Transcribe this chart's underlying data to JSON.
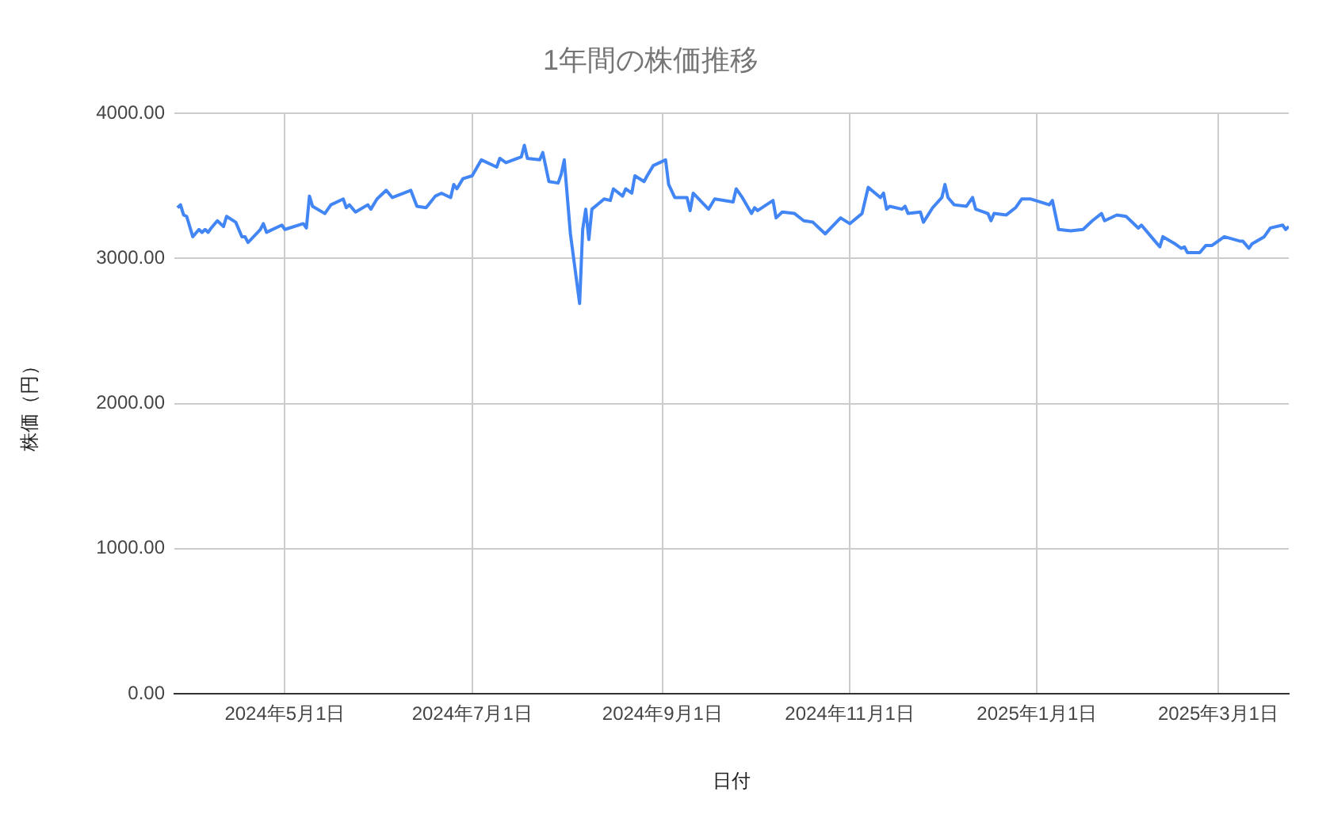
{
  "chart_data": {
    "type": "line",
    "title": "1年間の株価推移",
    "xlabel": "日付",
    "ylabel": "株価（円）",
    "xlim": [
      "2024-03-26",
      "2025-03-24"
    ],
    "xticks": [
      {
        "value": "2024-05-01",
        "label": "2024年5月1日"
      },
      {
        "value": "2024-07-01",
        "label": "2024年7月1日"
      },
      {
        "value": "2024-09-01",
        "label": "2024年9月1日"
      },
      {
        "value": "2024-11-01",
        "label": "2024年11月1日"
      },
      {
        "value": "2025-01-01",
        "label": "2025年1月1日"
      },
      {
        "value": "2025-03-01",
        "label": "2025年3月1日"
      }
    ],
    "ylim": [
      0,
      4000
    ],
    "yticks": [
      {
        "value": 0,
        "label": "0.00"
      },
      {
        "value": 1000,
        "label": "1000.00"
      },
      {
        "value": 2000,
        "label": "2000.00"
      },
      {
        "value": 3000,
        "label": "3000.00"
      },
      {
        "value": 4000,
        "label": "4000.00"
      }
    ],
    "grid": true,
    "legend": false,
    "marker": "none",
    "line_style": "solid",
    "x": [
      "2024-03-27",
      "2024-03-28",
      "2024-03-29",
      "2024-03-30",
      "2024-04-01",
      "2024-04-03",
      "2024-04-04",
      "2024-04-05",
      "2024-04-06",
      "2024-04-07",
      "2024-04-09",
      "2024-04-11",
      "2024-04-12",
      "2024-04-15",
      "2024-04-17",
      "2024-04-18",
      "2024-04-19",
      "2024-04-23",
      "2024-04-24",
      "2024-04-25",
      "2024-04-30",
      "2024-05-01",
      "2024-05-07",
      "2024-05-08",
      "2024-05-09",
      "2024-05-10",
      "2024-05-14",
      "2024-05-16",
      "2024-05-20",
      "2024-05-21",
      "2024-05-22",
      "2024-05-24",
      "2024-05-28",
      "2024-05-29",
      "2024-05-31",
      "2024-06-03",
      "2024-06-05",
      "2024-06-11",
      "2024-06-13",
      "2024-06-16",
      "2024-06-19",
      "2024-06-21",
      "2024-06-24",
      "2024-06-25",
      "2024-06-26",
      "2024-06-28",
      "2024-07-01",
      "2024-07-04",
      "2024-07-09",
      "2024-07-10",
      "2024-07-12",
      "2024-07-17",
      "2024-07-18",
      "2024-07-19",
      "2024-07-23",
      "2024-07-24",
      "2024-07-26",
      "2024-07-29",
      "2024-07-30",
      "2024-07-31",
      "2024-08-02",
      "2024-08-05",
      "2024-08-06",
      "2024-08-07",
      "2024-08-08",
      "2024-08-09",
      "2024-08-13",
      "2024-08-15",
      "2024-08-16",
      "2024-08-19",
      "2024-08-20",
      "2024-08-22",
      "2024-08-23",
      "2024-08-26",
      "2024-08-27",
      "2024-08-29",
      "2024-09-02",
      "2024-09-03",
      "2024-09-05",
      "2024-09-09",
      "2024-09-10",
      "2024-09-11",
      "2024-09-16",
      "2024-09-18",
      "2024-09-24",
      "2024-09-25",
      "2024-09-27",
      "2024-09-30",
      "2024-10-01",
      "2024-10-02",
      "2024-10-07",
      "2024-10-08",
      "2024-10-10",
      "2024-10-14",
      "2024-10-17",
      "2024-10-20",
      "2024-10-22",
      "2024-10-24",
      "2024-10-29",
      "2024-11-01",
      "2024-11-05",
      "2024-11-07",
      "2024-11-11",
      "2024-11-12",
      "2024-11-13",
      "2024-11-14",
      "2024-11-18",
      "2024-11-19",
      "2024-11-20",
      "2024-11-24",
      "2024-11-25",
      "2024-11-28",
      "2024-12-01",
      "2024-12-02",
      "2024-12-03",
      "2024-12-05",
      "2024-12-09",
      "2024-12-11",
      "2024-12-12",
      "2024-12-16",
      "2024-12-17",
      "2024-12-18",
      "2024-12-22",
      "2024-12-25",
      "2024-12-27",
      "2024-12-30",
      "2025-01-05",
      "2025-01-06",
      "2025-01-08",
      "2025-01-12",
      "2025-01-16",
      "2025-01-19",
      "2025-01-22",
      "2025-01-23",
      "2025-01-27",
      "2025-01-30",
      "2025-02-03",
      "2025-02-04",
      "2025-02-08",
      "2025-02-10",
      "2025-02-11",
      "2025-02-15",
      "2025-02-17",
      "2025-02-18",
      "2025-02-19",
      "2025-02-23",
      "2025-02-25",
      "2025-02-27",
      "2025-03-03",
      "2025-03-08",
      "2025-03-09",
      "2025-03-11",
      "2025-03-12",
      "2025-03-16",
      "2025-03-18",
      "2025-03-22",
      "2025-03-23",
      "2025-03-24"
    ],
    "series": [
      {
        "color": "#4285f4",
        "values": [
          3350,
          3370,
          3300,
          3290,
          3150,
          3200,
          3180,
          3200,
          3180,
          3210,
          3260,
          3220,
          3290,
          3250,
          3150,
          3150,
          3110,
          3200,
          3240,
          3180,
          3230,
          3200,
          3240,
          3210,
          3430,
          3360,
          3310,
          3370,
          3410,
          3350,
          3370,
          3320,
          3370,
          3340,
          3410,
          3470,
          3420,
          3470,
          3360,
          3350,
          3430,
          3450,
          3420,
          3510,
          3480,
          3550,
          3570,
          3680,
          3630,
          3690,
          3660,
          3700,
          3780,
          3690,
          3680,
          3730,
          3530,
          3520,
          3580,
          3680,
          3170,
          2690,
          3200,
          3340,
          3130,
          3340,
          3410,
          3400,
          3480,
          3430,
          3480,
          3450,
          3570,
          3530,
          3570,
          3640,
          3680,
          3510,
          3420,
          3420,
          3330,
          3450,
          3340,
          3410,
          3390,
          3480,
          3420,
          3310,
          3350,
          3330,
          3400,
          3280,
          3320,
          3310,
          3260,
          3250,
          3210,
          3170,
          3280,
          3240,
          3310,
          3490,
          3420,
          3450,
          3340,
          3360,
          3340,
          3360,
          3310,
          3320,
          3250,
          3350,
          3420,
          3510,
          3420,
          3370,
          3360,
          3420,
          3340,
          3310,
          3260,
          3310,
          3300,
          3350,
          3410,
          3410,
          3370,
          3400,
          3200,
          3190,
          3200,
          3260,
          3310,
          3260,
          3300,
          3290,
          3210,
          3230,
          3130,
          3080,
          3150,
          3100,
          3070,
          3080,
          3040,
          3040,
          3090,
          3090,
          3150,
          3120,
          3120,
          3070,
          3100,
          3150,
          3210,
          3230,
          3200,
          3220
        ]
      }
    ]
  }
}
